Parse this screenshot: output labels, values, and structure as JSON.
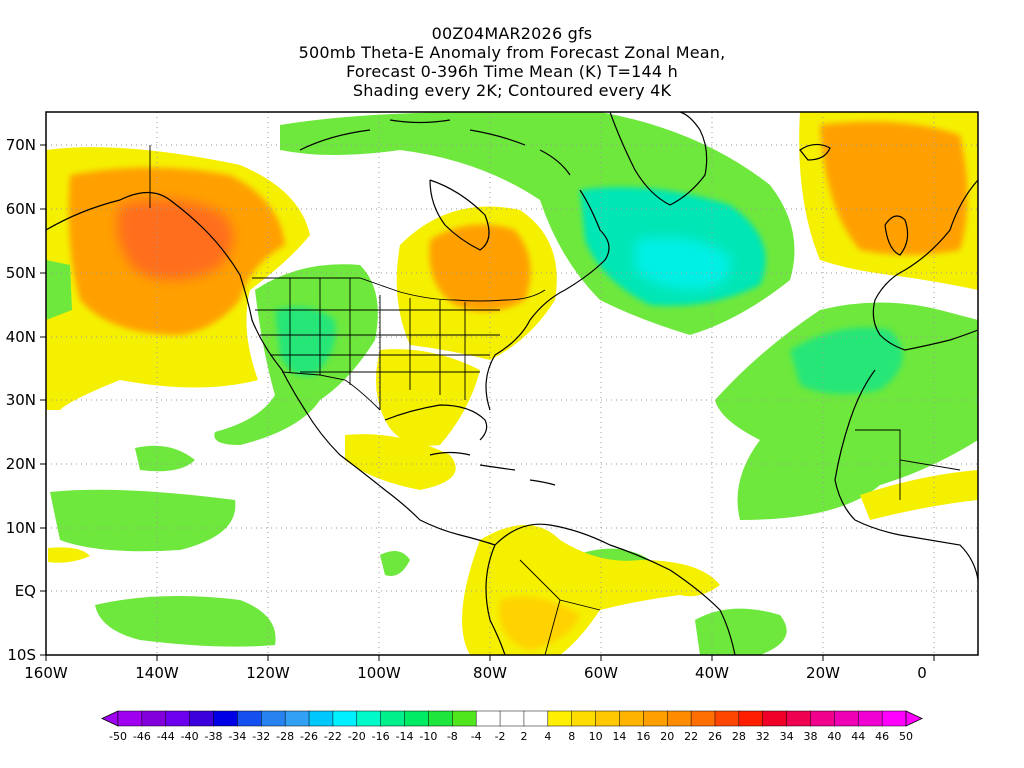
{
  "header": {
    "lines": [
      "00Z04MAR2026 gfs",
      "500mb Theta-E Anomaly from Forecast Zonal Mean,",
      "Forecast 0-396h Time Mean (K) T=144 h",
      "Shading every 2K; Contoured every 4K"
    ]
  },
  "map": {
    "lat_labels": [
      "70N",
      "60N",
      "50N",
      "40N",
      "30N",
      "20N",
      "10N",
      "EQ",
      "10S"
    ],
    "lon_labels": [
      "160W",
      "140W",
      "120W",
      "100W",
      "80W",
      "60W",
      "40W",
      "20W",
      "0"
    ],
    "lat_values": [
      70,
      60,
      50,
      40,
      30,
      20,
      10,
      0,
      -10
    ],
    "lon_values": [
      -160,
      -140,
      -120,
      -100,
      -80,
      -60,
      -40,
      -20,
      0
    ]
  },
  "colorbar": {
    "labels": [
      "-50",
      "-46",
      "-44",
      "-40",
      "-38",
      "-34",
      "-32",
      "-28",
      "-26",
      "-22",
      "-20",
      "-16",
      "-14",
      "-10",
      "-8",
      "-4",
      "-2",
      "2",
      "4",
      "8",
      "10",
      "14",
      "16",
      "20",
      "22",
      "26",
      "28",
      "32",
      "34",
      "38",
      "40",
      "44",
      "46",
      "50"
    ],
    "colors": [
      "#a000f0",
      "#8200dc",
      "#6e00f0",
      "#3c00dc",
      "#0000e6",
      "#1450f0",
      "#2882f0",
      "#32a0f5",
      "#00c8ff",
      "#00f0ff",
      "#00fac8",
      "#00f08c",
      "#00eb64",
      "#1ee63c",
      "#50e61e",
      "#ffffff",
      "#ffffff",
      "#ffffff",
      "#fff000",
      "#ffdc00",
      "#ffc800",
      "#ffb400",
      "#ffa000",
      "#ff8c00",
      "#ff6e00",
      "#ff4600",
      "#ff1e00",
      "#f00028",
      "#f00050",
      "#f0008c",
      "#f000b4",
      "#f000d2",
      "#ff00ff"
    ]
  },
  "colors": {
    "green": "#6ee83c",
    "green_dark": "#28e678",
    "teal": "#00e6b4",
    "cyan": "#00f0e6",
    "yellow": "#f5f000",
    "gold": "#ffd200",
    "orange": "#ffa000",
    "red_orange": "#ff6e1e",
    "land_line": "#000000",
    "grid": "#9a9a9a"
  }
}
